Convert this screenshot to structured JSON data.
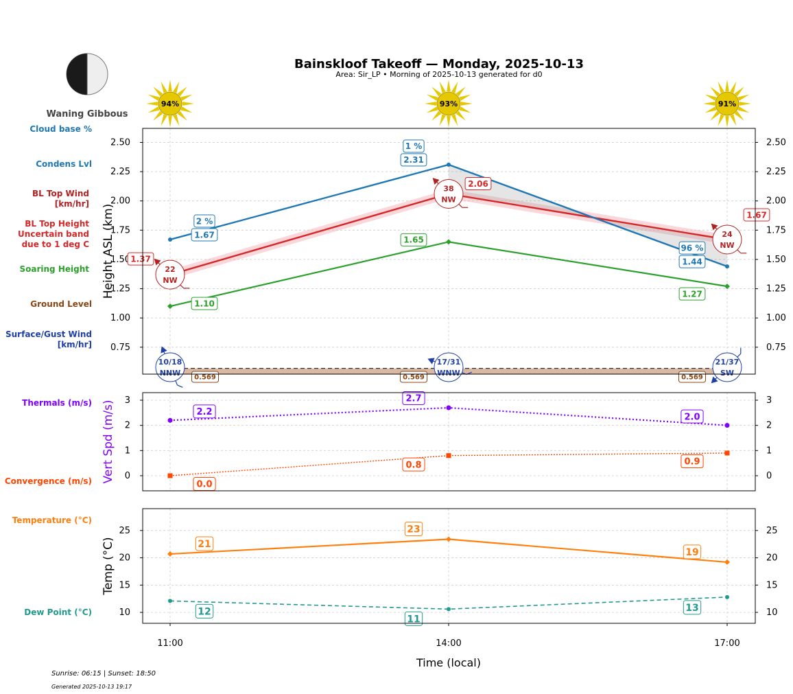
{
  "header": {
    "title": "Bainskloof Takeoff — Monday, 2025-10-13",
    "subtitle": "Area: Sir_LP • Morning of 2025-10-13 generated for d0",
    "moon_phase": "Waning Gibbous",
    "sunrise_sunset": "Sunrise: 06:15 | Sunset: 18:50",
    "generated": "Generated 2025-10-13 19:17"
  },
  "colors": {
    "condens": "#1f77b4",
    "bl_top": "#d62728",
    "soaring": "#2ca02c",
    "ground": "#8b4513",
    "surface_wind": "#1f3fa8",
    "thermals": "#7f00ff",
    "convergence": "#ff4500",
    "temperature": "#ff7f0e",
    "dewpoint": "#22998f",
    "sun": "#e6c800"
  },
  "legend": {
    "cloud_base": "Cloud base %",
    "condens": "Condens Lvl",
    "bl_wind_1": "BL Top Wind",
    "bl_wind_2": "[km/hr]",
    "bl_height_1": "BL Top Height",
    "bl_height_2": "Uncertain band",
    "bl_height_3": "due to 1 deg C",
    "soaring": "Soaring Height",
    "ground": "Ground Level",
    "surface_1": "Surface/Gust Wind",
    "surface_2": "[km/hr]",
    "thermals": "Thermals (m/s)",
    "convergence": "Convergence (m/s)",
    "temperature": "Temperature (°C)",
    "dewpoint": "Dew Point (°C)"
  },
  "chart_data": [
    {
      "type": "line",
      "ylabel": "Height ASL (km)",
      "ylim": [
        0.52,
        2.62
      ],
      "yticks": [
        0.75,
        1.0,
        1.25,
        1.5,
        1.75,
        2.0,
        2.25,
        2.5
      ],
      "x": [
        "11:00",
        "14:00",
        "17:00"
      ],
      "sun_percent": [
        "94%",
        "93%",
        "91%"
      ],
      "series": [
        {
          "key": "condens",
          "values": [
            1.67,
            2.31,
            1.44
          ],
          "labels": [
            "1.67",
            "2.31",
            "1.44"
          ]
        },
        {
          "key": "bl_top",
          "values": [
            1.37,
            2.06,
            1.67
          ],
          "labels": [
            "1.37",
            "2.06",
            "1.67"
          ],
          "band": 0.04
        },
        {
          "key": "soaring",
          "values": [
            1.1,
            1.65,
            1.27
          ],
          "labels": [
            "1.10",
            "1.65",
            "1.27"
          ]
        },
        {
          "key": "ground",
          "values": [
            0.569,
            0.569,
            0.569
          ],
          "labels": [
            "0.569",
            "0.569",
            "0.569"
          ]
        }
      ],
      "cloud_base_pct": [
        "2 %",
        "1 %",
        "96 %"
      ],
      "bl_wind": [
        {
          "speed": "22",
          "dir": "NW",
          "rotate": 135
        },
        {
          "speed": "38",
          "dir": "NW",
          "rotate": 135
        },
        {
          "speed": "24",
          "dir": "NW",
          "rotate": 135
        }
      ],
      "surface_wind": [
        {
          "speed": "10/18",
          "dir": "NNW",
          "rotate": 158
        },
        {
          "speed": "17/31",
          "dir": "WNW",
          "rotate": 112
        },
        {
          "speed": "21/37",
          "dir": "SW",
          "rotate": 45
        }
      ]
    },
    {
      "type": "line",
      "ylabel": "Vert Spd (m/s)",
      "ylim": [
        -0.6,
        3.3
      ],
      "yticks": [
        0,
        1,
        2,
        3
      ],
      "x": [
        "11:00",
        "14:00",
        "17:00"
      ],
      "series": [
        {
          "key": "thermals",
          "values": [
            2.2,
            2.7,
            2.0
          ],
          "labels": [
            "2.2",
            "2.7",
            "2.0"
          ]
        },
        {
          "key": "convergence",
          "values": [
            0.0,
            0.8,
            0.9
          ],
          "labels": [
            "0.0",
            "0.8",
            "0.9"
          ]
        }
      ]
    },
    {
      "type": "line",
      "ylabel": "Temp (°C)",
      "xlabel": "Time (local)",
      "ylim": [
        8,
        29
      ],
      "yticks": [
        10,
        15,
        20,
        25
      ],
      "x": [
        "11:00",
        "14:00",
        "17:00"
      ],
      "series": [
        {
          "key": "temperature",
          "values": [
            20.7,
            23.4,
            19.2
          ],
          "labels": [
            "21",
            "23",
            "19"
          ]
        },
        {
          "key": "dewpoint",
          "values": [
            12.1,
            10.6,
            12.8
          ],
          "labels": [
            "12",
            "11",
            "13"
          ]
        }
      ]
    }
  ]
}
